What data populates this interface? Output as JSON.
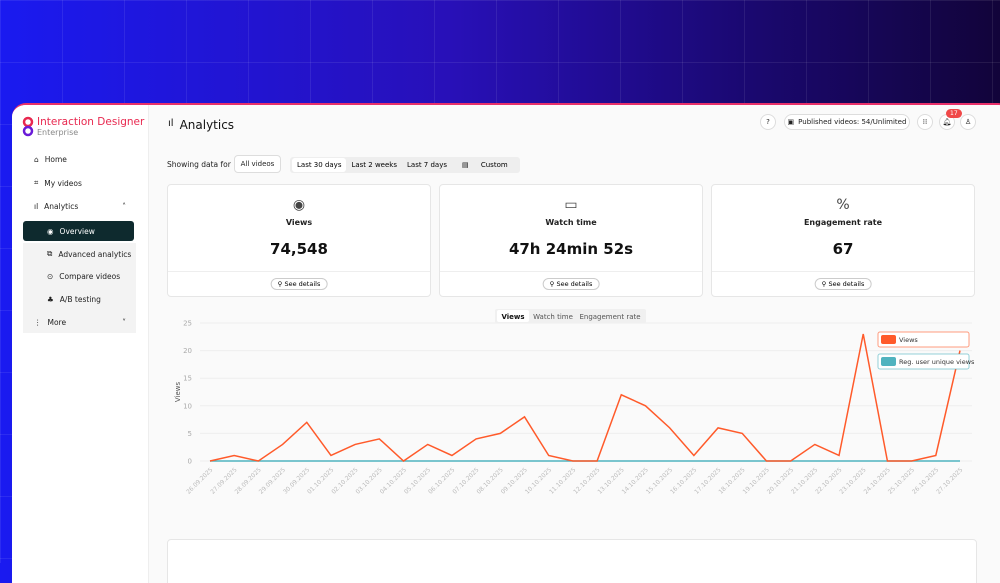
{
  "brand": {
    "name": "Interaction Designer",
    "edition": "Enterprise"
  },
  "sidebar": {
    "items": [
      {
        "label": "Home",
        "icon": "home-icon"
      },
      {
        "label": "My videos",
        "icon": "videos-icon"
      },
      {
        "label": "Analytics",
        "icon": "bar-chart-icon"
      }
    ],
    "analytics_sub": [
      {
        "label": "Overview"
      },
      {
        "label": "Advanced analytics"
      },
      {
        "label": "Compare videos"
      },
      {
        "label": "A/B testing"
      }
    ],
    "more": "More"
  },
  "header": {
    "title": "Analytics",
    "help": "?",
    "published": "Published videos: 54/Unlimited",
    "notifications": "17"
  },
  "filters": {
    "showing": "Showing data for",
    "video": "All videos",
    "ranges": [
      "Last 30 days",
      "Last 2 weeks",
      "Last 7 days",
      "Custom"
    ],
    "active": "Last 30 days"
  },
  "cards": [
    {
      "label": "Views",
      "value": "74,548",
      "details": "See details"
    },
    {
      "label": "Watch time",
      "value": "47h 24min 52s",
      "details": "See details"
    },
    {
      "label": "Engagement rate",
      "value": "67",
      "details": "See details"
    }
  ],
  "chart_tabs": [
    "Views",
    "Watch time",
    "Engagement rate"
  ],
  "chart_data": {
    "type": "line",
    "ylabel": "Views",
    "ylim": [
      0,
      25
    ],
    "yticks": [
      0,
      5,
      10,
      15,
      20,
      25
    ],
    "grid": true,
    "legend": "top-right",
    "x": [
      "26.09.2025",
      "27.09.2025",
      "28.09.2025",
      "29.09.2025",
      "30.09.2025",
      "01.10.2025",
      "02.10.2025",
      "03.10.2025",
      "04.10.2025",
      "05.10.2025",
      "06.10.2025",
      "07.10.2025",
      "08.10.2025",
      "09.10.2025",
      "10.10.2025",
      "11.10.2025",
      "12.10.2025",
      "13.10.2025",
      "14.10.2025",
      "15.10.2025",
      "16.10.2025",
      "17.10.2025",
      "18.10.2025",
      "19.10.2025",
      "20.10.2025",
      "21.10.2025",
      "22.10.2025",
      "23.10.2025",
      "24.10.2025",
      "25.10.2025",
      "26.10.2025",
      "27.10.2025"
    ],
    "series": [
      {
        "name": "Views",
        "color": "#ff5a2a",
        "values": [
          0,
          1,
          0,
          3,
          7,
          1,
          3,
          4,
          0,
          3,
          1,
          4,
          5,
          8,
          1,
          0,
          0,
          12,
          10,
          6,
          1,
          6,
          5,
          0,
          0,
          3,
          1,
          23,
          0,
          0,
          1,
          20
        ]
      },
      {
        "name": "Reg. user unique views",
        "color": "#4fb3bf",
        "values": [
          0,
          0,
          0,
          0,
          0,
          0,
          0,
          0,
          0,
          0,
          0,
          0,
          0,
          0,
          0,
          0,
          0,
          0,
          0,
          0,
          0,
          0,
          0,
          0,
          0,
          0,
          0,
          0,
          0,
          0,
          0,
          0
        ]
      }
    ]
  }
}
